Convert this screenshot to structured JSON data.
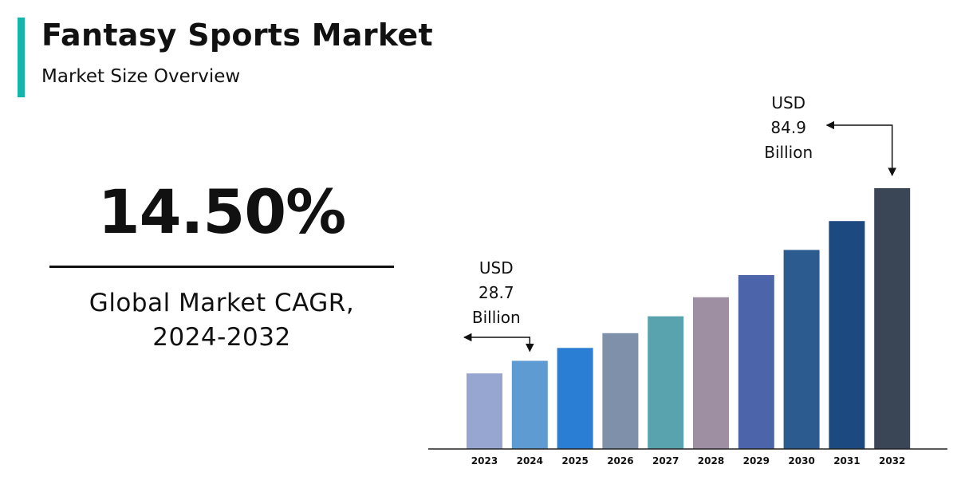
{
  "header": {
    "title": "Fantasy Sports Market",
    "subtitle": "Market Size Overview",
    "accent_color": "#15b5ad"
  },
  "stat": {
    "value": "14.50%",
    "caption_line1": "Global Market CAGR,",
    "caption_line2": "2024-2032"
  },
  "chart_data": {
    "type": "bar",
    "categories": [
      "2023",
      "2024",
      "2025",
      "2026",
      "2027",
      "2028",
      "2029",
      "2030",
      "2031",
      "2032"
    ],
    "values": [
      24.6,
      28.7,
      32.9,
      37.7,
      43.2,
      49.4,
      56.6,
      64.8,
      74.2,
      84.9
    ],
    "bar_colors": [
      "#97a6d1",
      "#5f9bd3",
      "#2a7fd4",
      "#7f90ab",
      "#58a3ad",
      "#9e8fa2",
      "#4b64aa",
      "#2c5c8f",
      "#1c4a80",
      "#3a4556"
    ],
    "grid": false,
    "annotations": [
      {
        "category": "2024",
        "line1": "USD",
        "line2": "28.7",
        "line3": "Billion"
      },
      {
        "category": "2032",
        "line1": "USD",
        "line2": "84.9",
        "line3": "Billion"
      }
    ]
  }
}
